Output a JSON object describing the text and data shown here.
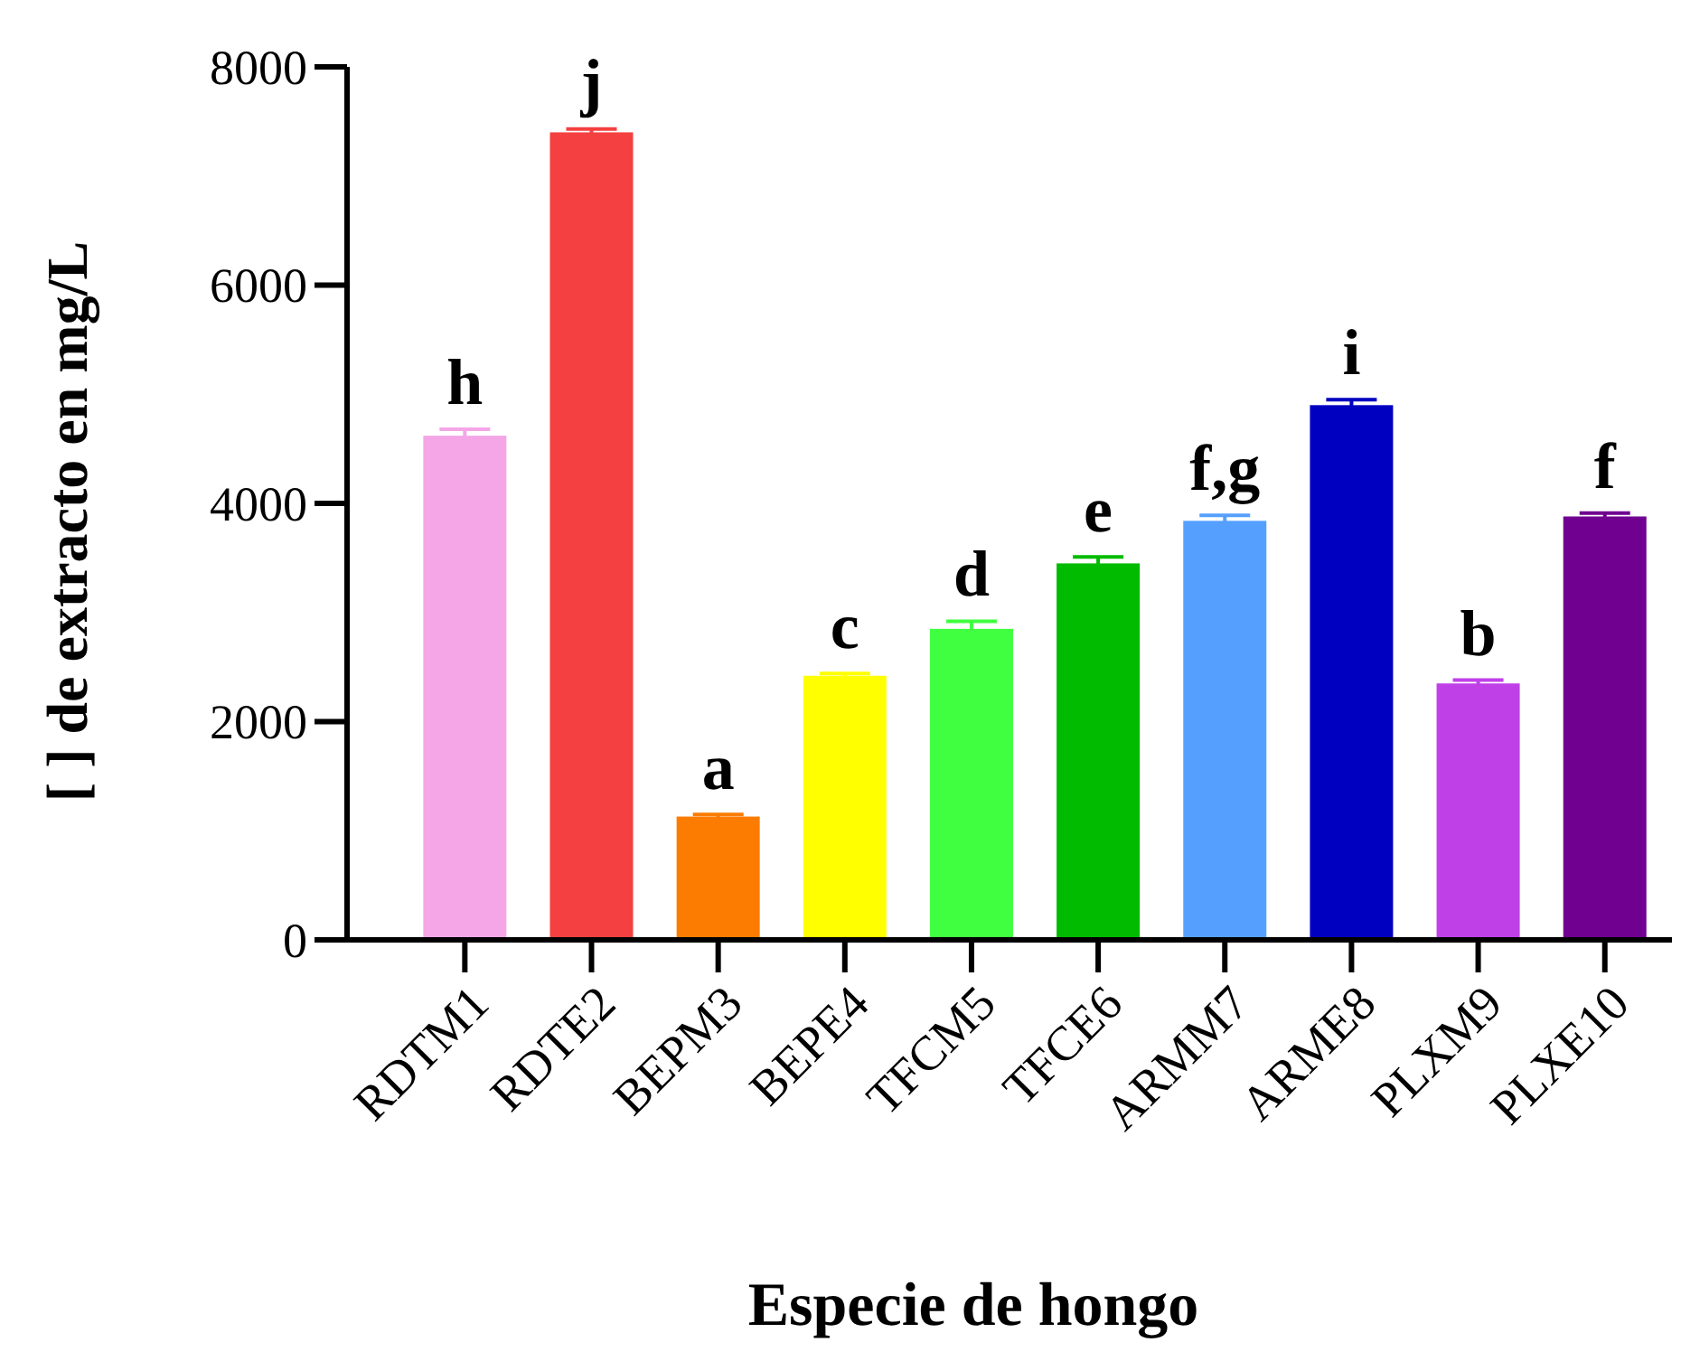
{
  "chart_data": {
    "type": "bar",
    "xlabel": "Especie de hongo",
    "ylabel": "[ ] de extracto en mg/L",
    "categories": [
      "RDTM1",
      "RDTE2",
      "BEPM3",
      "BEPE4",
      "TFCM5",
      "TFCE6",
      "ARMM7",
      "ARME8",
      "PLXM9",
      "PLXE10"
    ],
    "values": [
      4620,
      7400,
      1130,
      2420,
      2850,
      3450,
      3840,
      4900,
      2350,
      3880
    ],
    "errors": [
      60,
      30,
      20,
      20,
      70,
      60,
      50,
      50,
      30,
      30
    ],
    "colors": [
      "#f4a6e6",
      "#f44040",
      "#fb7c00",
      "#ffff00",
      "#40ff40",
      "#00bb00",
      "#55a0ff",
      "#0000c0",
      "#c040e8",
      "#700090"
    ],
    "ylim": [
      0,
      8000
    ],
    "yticks": [
      0,
      2000,
      4000,
      6000,
      8000
    ],
    "annotations": [
      {
        "text": "h",
        "x": "RDTM1",
        "y": 4680
      },
      {
        "text": "j",
        "x": "RDTE2",
        "y": 7430
      },
      {
        "text": "a",
        "x": "BEPM3",
        "y": 1150
      },
      {
        "text": "c",
        "x": "BEPE4",
        "y": 2440
      },
      {
        "text": "d",
        "x": "TFCM5",
        "y": 2920
      },
      {
        "text": "e",
        "x": "TFCE6",
        "y": 3510
      },
      {
        "text": "f,g",
        "x": "ARMM7",
        "y": 3890
      },
      {
        "text": "i",
        "x": "ARME8",
        "y": 4950
      },
      {
        "text": "b",
        "x": "PLXM9",
        "y": 2380
      },
      {
        "text": "f",
        "x": "PLXE10",
        "y": 3910
      }
    ]
  }
}
